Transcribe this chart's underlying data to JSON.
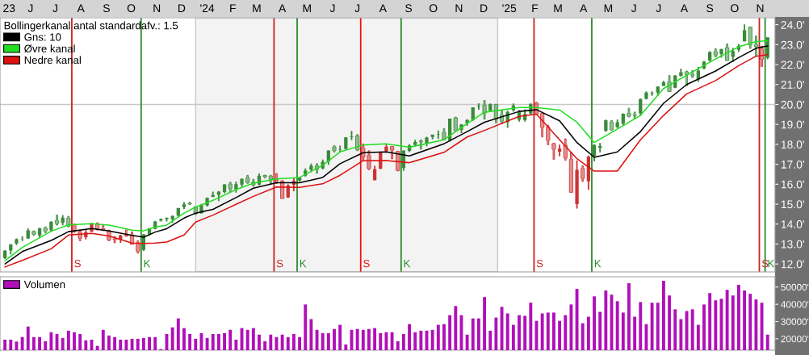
{
  "chart_data": [
    {
      "type": "candlestick",
      "x": [
        "2023-05-15",
        "2023-05-22",
        "2023-05-29",
        "2023-06-05",
        "2023-06-12",
        "2023-06-19",
        "2023-06-26",
        "2023-07-03",
        "2023-07-10",
        "2023-07-17",
        "2023-07-24",
        "2023-07-31",
        "2023-08-07",
        "2023-08-14",
        "2023-08-21",
        "2023-08-28",
        "2023-09-04",
        "2023-09-11",
        "2023-09-18",
        "2023-09-25",
        "2023-10-02",
        "2023-10-09",
        "2023-10-16",
        "2023-10-23",
        "2023-10-30",
        "2023-11-06",
        "2023-11-13",
        "2023-11-20",
        "2023-11-27",
        "2023-12-04",
        "2023-12-11",
        "2023-12-18",
        "2023-12-25",
        "2024-01-01",
        "2024-01-08",
        "2024-01-15",
        "2024-01-22",
        "2024-01-29",
        "2024-02-05",
        "2024-02-12",
        "2024-02-19",
        "2024-02-26",
        "2024-03-04",
        "2024-03-11",
        "2024-03-18",
        "2024-03-25",
        "2024-04-01",
        "2024-04-08",
        "2024-04-15",
        "2024-04-22",
        "2024-04-29",
        "2024-05-06",
        "2024-05-13",
        "2024-05-20",
        "2024-05-27",
        "2024-06-03",
        "2024-06-10",
        "2024-06-17",
        "2024-06-24",
        "2024-07-01",
        "2024-07-08",
        "2024-07-15",
        "2024-07-22",
        "2024-07-29",
        "2024-08-05",
        "2024-08-12",
        "2024-08-19",
        "2024-08-26",
        "2024-09-02",
        "2024-09-09",
        "2024-09-16",
        "2024-09-23",
        "2024-09-30",
        "2024-10-07",
        "2024-10-14",
        "2024-10-21",
        "2024-10-28",
        "2024-11-04",
        "2024-11-11",
        "2024-11-18",
        "2024-11-25",
        "2024-12-02",
        "2024-12-09",
        "2024-12-16",
        "2024-12-23",
        "2024-12-30",
        "2025-01-06",
        "2025-01-13",
        "2025-01-20",
        "2025-01-27",
        "2025-02-03",
        "2025-02-10",
        "2025-02-17",
        "2025-02-24",
        "2025-03-03",
        "2025-03-10",
        "2025-03-17",
        "2025-03-24",
        "2025-03-31",
        "2025-04-07",
        "2025-04-14",
        "2025-04-21",
        "2025-04-28",
        "2025-05-05",
        "2025-05-12",
        "2025-05-19",
        "2025-05-26",
        "2025-06-02",
        "2025-06-09",
        "2025-06-16",
        "2025-06-23",
        "2025-06-30",
        "2025-07-07",
        "2025-07-14",
        "2025-07-21",
        "2025-07-28",
        "2025-08-04",
        "2025-08-11",
        "2025-08-18",
        "2025-08-25",
        "2025-09-01",
        "2025-09-08",
        "2025-09-15",
        "2025-09-22",
        "2025-09-29",
        "2025-10-06",
        "2025-10-13",
        "2025-10-20",
        "2025-10-27",
        "2025-11-03",
        "2025-11-10",
        "2025-11-17",
        "2025-11-24"
      ],
      "ohlc": [
        [
          12.3,
          12.69,
          12.25,
          12.66
        ],
        [
          12.67,
          13.0,
          12.48,
          12.98
        ],
        [
          13.03,
          13.28,
          12.95,
          13.24
        ],
        [
          13.25,
          13.39,
          13.15,
          13.26
        ],
        [
          13.28,
          13.79,
          13.26,
          13.69
        ],
        [
          13.63,
          13.66,
          13.43,
          13.49
        ],
        [
          13.43,
          13.82,
          13.32,
          13.79
        ],
        [
          13.8,
          13.86,
          13.56,
          13.66
        ],
        [
          13.69,
          14.15,
          13.61,
          14.11
        ],
        [
          14.18,
          14.45,
          13.95,
          14.03
        ],
        [
          14.06,
          14.45,
          13.94,
          14.32
        ],
        [
          14.3,
          14.39,
          13.86,
          13.91
        ],
        [
          13.98,
          14.0,
          13.58,
          13.64
        ],
        [
          13.6,
          13.67,
          13.16,
          13.29
        ],
        [
          13.34,
          13.72,
          13.23,
          13.59
        ],
        [
          13.61,
          14.07,
          13.6,
          14.03
        ],
        [
          14.0,
          14.07,
          13.7,
          13.76
        ],
        [
          13.77,
          13.94,
          13.67,
          13.71
        ],
        [
          13.68,
          13.7,
          13.16,
          13.21
        ],
        [
          13.24,
          13.38,
          13.06,
          13.22
        ],
        [
          13.22,
          13.47,
          13.06,
          13.43
        ],
        [
          13.43,
          13.71,
          13.38,
          13.41
        ],
        [
          13.45,
          13.61,
          12.98,
          12.98
        ],
        [
          13.06,
          13.17,
          12.54,
          12.64
        ],
        [
          12.7,
          13.5,
          12.65,
          13.48
        ],
        [
          13.49,
          13.8,
          13.41,
          13.8
        ],
        [
          13.77,
          14.16,
          13.74,
          14.13
        ],
        [
          14.17,
          14.28,
          14.13,
          14.25
        ],
        [
          14.25,
          14.33,
          14.13,
          14.31
        ],
        [
          14.24,
          14.43,
          14.06,
          14.4
        ],
        [
          14.42,
          14.81,
          14.37,
          14.81
        ],
        [
          14.85,
          15.1,
          14.75,
          14.99
        ],
        [
          15.03,
          15.1,
          14.98,
          15.01
        ],
        [
          14.87,
          14.87,
          14.48,
          14.52
        ],
        [
          14.54,
          15.01,
          14.53,
          14.97
        ],
        [
          14.93,
          15.34,
          14.88,
          15.31
        ],
        [
          15.37,
          15.63,
          15.36,
          15.46
        ],
        [
          15.47,
          15.66,
          15.15,
          15.63
        ],
        [
          15.61,
          16.0,
          15.55,
          15.99
        ],
        [
          16.0,
          16.1,
          15.63,
          15.78
        ],
        [
          15.75,
          16.13,
          15.58,
          16.0
        ],
        [
          15.98,
          16.3,
          15.87,
          16.27
        ],
        [
          16.32,
          16.45,
          16.04,
          16.09
        ],
        [
          16.1,
          16.25,
          15.89,
          15.97
        ],
        [
          15.98,
          16.54,
          15.94,
          16.43
        ],
        [
          16.44,
          16.46,
          16.31,
          16.38
        ],
        [
          16.4,
          16.45,
          16.02,
          16.25
        ],
        [
          16.22,
          16.54,
          16.04,
          16.18
        ],
        [
          16.15,
          16.19,
          15.28,
          15.28
        ],
        [
          15.34,
          16.0,
          15.31,
          15.93
        ],
        [
          15.97,
          16.31,
          15.65,
          16.16
        ],
        [
          16.19,
          16.37,
          16.13,
          16.34
        ],
        [
          16.43,
          16.79,
          16.38,
          16.69
        ],
        [
          16.73,
          17.03,
          16.6,
          16.92
        ],
        [
          16.92,
          17.03,
          16.55,
          16.74
        ],
        [
          16.79,
          17.24,
          16.74,
          17.13
        ],
        [
          17.15,
          17.7,
          16.97,
          17.69
        ],
        [
          17.86,
          17.94,
          17.61,
          17.69
        ],
        [
          17.71,
          17.94,
          17.6,
          17.73
        ],
        [
          17.77,
          18.36,
          17.73,
          18.35
        ],
        [
          18.37,
          18.67,
          18.22,
          18.4
        ],
        [
          18.42,
          18.49,
          17.68,
          17.73
        ],
        [
          17.81,
          18.02,
          17.18,
          17.36
        ],
        [
          17.44,
          17.68,
          16.73,
          16.78
        ],
        [
          16.2,
          16.92,
          16.2,
          16.75
        ],
        [
          16.78,
          17.64,
          16.75,
          17.63
        ],
        [
          17.65,
          18.02,
          17.58,
          17.88
        ],
        [
          17.89,
          17.9,
          17.27,
          17.71
        ],
        [
          17.64,
          17.66,
          16.66,
          16.69
        ],
        [
          16.81,
          17.7,
          16.67,
          17.68
        ],
        [
          17.67,
          18.01,
          17.61,
          17.95
        ],
        [
          17.98,
          18.23,
          17.92,
          18.12
        ],
        [
          18.16,
          18.23,
          17.76,
          18.14
        ],
        [
          18.05,
          18.38,
          17.91,
          18.34
        ],
        [
          18.37,
          18.49,
          18.25,
          18.49
        ],
        [
          18.5,
          18.69,
          18.28,
          18.52
        ],
        [
          18.59,
          18.79,
          18.24,
          18.24
        ],
        [
          18.21,
          19.29,
          18.14,
          19.29
        ],
        [
          19.33,
          19.37,
          18.67,
          18.68
        ],
        [
          18.73,
          19.02,
          18.56,
          19.0
        ],
        [
          19.06,
          19.26,
          18.93,
          19.22
        ],
        [
          19.22,
          19.86,
          19.18,
          19.86
        ],
        [
          19.9,
          20.06,
          19.74,
          19.93
        ],
        [
          19.96,
          20.2,
          19.26,
          19.57
        ],
        [
          19.69,
          20.05,
          19.68,
          20.02
        ],
        [
          20.0,
          20.02,
          19.08,
          19.28
        ],
        [
          19.47,
          19.7,
          19.03,
          19.16
        ],
        [
          19.11,
          19.7,
          18.83,
          19.63
        ],
        [
          19.72,
          20.05,
          19.64,
          19.95
        ],
        [
          19.24,
          19.73,
          19.14,
          19.63
        ],
        [
          19.22,
          19.76,
          19.14,
          19.52
        ],
        [
          19.55,
          20.05,
          19.49,
          20.03
        ],
        [
          20.06,
          20.11,
          19.52,
          19.52
        ],
        [
          19.55,
          19.58,
          18.37,
          18.85
        ],
        [
          18.86,
          18.96,
          17.98,
          18.2
        ],
        [
          18.04,
          18.06,
          17.24,
          17.75
        ],
        [
          17.63,
          17.99,
          17.4,
          17.78
        ],
        [
          17.97,
          18.28,
          17.2,
          17.32
        ],
        [
          17.24,
          17.6,
          15.59,
          15.59
        ],
        [
          15.0,
          17.2,
          14.78,
          16.72
        ],
        [
          16.79,
          16.93,
          16.14,
          16.29
        ],
        [
          16.14,
          17.44,
          15.72,
          17.38
        ],
        [
          17.42,
          18.0,
          17.15,
          17.98
        ],
        [
          17.82,
          18.07,
          17.59,
          17.93
        ],
        [
          18.67,
          19.24,
          18.63,
          19.21
        ],
        [
          19.11,
          19.2,
          18.7,
          18.74
        ],
        [
          18.86,
          19.24,
          18.83,
          19.11
        ],
        [
          19.04,
          19.55,
          18.96,
          19.53
        ],
        [
          19.55,
          19.81,
          19.37,
          19.41
        ],
        [
          19.47,
          19.62,
          19.3,
          19.45
        ],
        [
          19.55,
          20.3,
          19.43,
          20.27
        ],
        [
          20.28,
          20.66,
          20.25,
          20.6
        ],
        [
          20.56,
          20.66,
          20.43,
          20.59
        ],
        [
          20.6,
          20.91,
          20.42,
          20.9
        ],
        [
          20.93,
          21.18,
          20.92,
          21.11
        ],
        [
          21.13,
          21.46,
          20.65,
          20.65
        ],
        [
          20.84,
          21.48,
          20.82,
          21.45
        ],
        [
          21.44,
          21.8,
          21.41,
          21.62
        ],
        [
          21.63,
          21.68,
          20.94,
          21.5
        ],
        [
          21.49,
          21.7,
          21.35,
          21.46
        ],
        [
          21.25,
          21.88,
          21.13,
          21.7
        ],
        [
          21.81,
          22.18,
          21.76,
          22.14
        ],
        [
          22.21,
          22.67,
          22.15,
          22.63
        ],
        [
          22.65,
          22.8,
          22.38,
          22.48
        ],
        [
          22.53,
          22.79,
          22.35,
          22.78
        ],
        [
          22.85,
          23.04,
          22.2,
          22.2
        ],
        [
          22.39,
          22.84,
          22.12,
          22.68
        ],
        [
          22.75,
          23.03,
          22.64,
          22.94
        ],
        [
          23.17,
          24.02,
          23.16,
          23.72
        ],
        [
          23.88,
          23.89,
          22.81,
          23.0
        ],
        [
          23.02,
          23.44,
          22.42,
          22.9
        ],
        [
          22.79,
          22.93,
          21.9,
          22.27
        ],
        [
          22.35,
          23.37,
          22.27,
          23.37
        ]
      ],
      "colors": [
        "#3a8a3a",
        "#3a8a3a",
        "#3a8a3a",
        "#3a8a3a",
        "#3a8a3a",
        "#3a8a3a",
        "#3a8a3a",
        "#3a8a3a",
        "#3a8a3a",
        "#3a8a3a",
        "#3a8a3a",
        "#3a8a3a",
        "#cc3333",
        "#cc3333",
        "#cc3333",
        "#cc3333",
        "#cc3333",
        "#cc3333",
        "#cc3333",
        "#cc3333",
        "#cc3333",
        "#cc3333",
        "#cc3333",
        "#cc3333",
        "#3a8a3a",
        "#3a8a3a",
        "#3a8a3a",
        "#3a8a3a",
        "#3a8a3a",
        "#3a8a3a",
        "#3a8a3a",
        "#3a8a3a",
        "#3a8a3a",
        "#3a8a3a",
        "#3a8a3a",
        "#3a8a3a",
        "#3a8a3a",
        "#3a8a3a",
        "#3a8a3a",
        "#3a8a3a",
        "#3a8a3a",
        "#3a8a3a",
        "#3a8a3a",
        "#3a8a3a",
        "#3a8a3a",
        "#3a8a3a",
        "#3a8a3a",
        "#cc3333",
        "#cc3333",
        "#cc3333",
        "#cc3333",
        "#3a8a3a",
        "#3a8a3a",
        "#3a8a3a",
        "#3a8a3a",
        "#3a8a3a",
        "#3a8a3a",
        "#3a8a3a",
        "#3a8a3a",
        "#3a8a3a",
        "#3a8a3a",
        "#3a8a3a",
        "#cc3333",
        "#cc3333",
        "#cc3333",
        "#cc3333",
        "#cc3333",
        "#cc3333",
        "#cc3333",
        "#3a8a3a",
        "#3a8a3a",
        "#3a8a3a",
        "#3a8a3a",
        "#3a8a3a",
        "#3a8a3a",
        "#3a8a3a",
        "#3a8a3a",
        "#3a8a3a",
        "#3a8a3a",
        "#3a8a3a",
        "#3a8a3a",
        "#3a8a3a",
        "#3a8a3a",
        "#3a8a3a",
        "#3a8a3a",
        "#3a8a3a",
        "#3a8a3a",
        "#3a8a3a",
        "#3a8a3a",
        "#3a8a3a",
        "#3a8a3a",
        "#3a8a3a",
        "#cc3333",
        "#cc3333",
        "#cc3333",
        "#cc3333",
        "#cc3333",
        "#cc3333",
        "#cc3333",
        "#cc3333",
        "#cc3333",
        "#cc3333",
        "#3a8a3a",
        "#3a8a3a",
        "#3a8a3a",
        "#3a8a3a",
        "#3a8a3a",
        "#3a8a3a",
        "#3a8a3a",
        "#3a8a3a",
        "#3a8a3a",
        "#3a8a3a",
        "#3a8a3a",
        "#3a8a3a",
        "#3a8a3a",
        "#3a8a3a",
        "#3a8a3a",
        "#3a8a3a",
        "#3a8a3a",
        "#3a8a3a",
        "#3a8a3a",
        "#3a8a3a",
        "#3a8a3a",
        "#3a8a3a",
        "#3a8a3a",
        "#3a8a3a",
        "#3a8a3a",
        "#3a8a3a",
        "#3a8a3a",
        "#3a8a3a",
        "#3a8a3a",
        "#cc3333",
        "#3a8a3a"
      ],
      "series": [
        {
          "type": "line",
          "name": "Gns: 10",
          "color": "#000000",
          "x": [
            "2023-05-15",
            "2023-06-05",
            "2023-07-10",
            "2023-07-31",
            "2023-08-28",
            "2023-09-18",
            "2023-10-16",
            "2023-10-30",
            "2023-11-13",
            "2023-11-27",
            "2023-12-18",
            "2024-01-01",
            "2024-01-22",
            "2024-02-19",
            "2024-03-11",
            "2024-04-08",
            "2024-05-06",
            "2024-06-03",
            "2024-06-24",
            "2024-07-22",
            "2024-08-19",
            "2024-09-16",
            "2024-10-28",
            "2024-11-25",
            "2024-12-16",
            "2025-01-27",
            "2025-02-17",
            "2025-03-17",
            "2025-04-07",
            "2025-04-28",
            "2025-05-26",
            "2025-06-23",
            "2025-07-21",
            "2025-08-18",
            "2025-09-22",
            "2025-10-20",
            "2025-11-10",
            "2025-11-24"
          ],
          "values": [
            12.0,
            12.62,
            13.18,
            13.62,
            13.78,
            13.66,
            13.43,
            13.34,
            13.6,
            13.77,
            14.3,
            14.55,
            14.74,
            15.33,
            15.8,
            16.07,
            16.07,
            16.34,
            17.03,
            17.58,
            17.62,
            17.42,
            18.03,
            18.64,
            19.11,
            19.65,
            19.74,
            19.18,
            18.09,
            17.35,
            17.62,
            18.64,
            20.06,
            21.0,
            21.68,
            22.35,
            22.82,
            22.93
          ]
        },
        {
          "type": "line",
          "name": "Øvre kanal",
          "color": "#22dd22",
          "x": [
            "2023-05-15",
            "2023-06-05",
            "2023-07-10",
            "2023-07-31",
            "2023-08-28",
            "2023-09-18",
            "2023-10-16",
            "2023-10-30",
            "2023-11-13",
            "2023-11-27",
            "2023-12-18",
            "2024-01-01",
            "2024-01-22",
            "2024-02-19",
            "2024-03-11",
            "2024-04-08",
            "2024-05-06",
            "2024-06-03",
            "2024-06-24",
            "2024-07-22",
            "2024-08-19",
            "2024-09-16",
            "2024-10-28",
            "2024-11-25",
            "2024-12-16",
            "2025-01-27",
            "2025-02-17",
            "2025-03-17",
            "2025-04-07",
            "2025-04-28",
            "2025-05-26",
            "2025-06-23",
            "2025-07-21",
            "2025-08-18",
            "2025-09-22",
            "2025-10-20",
            "2025-11-10",
            "2025-11-24"
          ],
          "values": [
            12.16,
            12.83,
            13.64,
            13.96,
            14.02,
            13.95,
            13.7,
            13.66,
            13.85,
            13.95,
            14.55,
            14.85,
            15.19,
            15.73,
            16.05,
            16.27,
            16.34,
            16.95,
            17.62,
            17.97,
            18.03,
            17.85,
            18.23,
            19.04,
            19.61,
            19.85,
            19.85,
            19.72,
            19.11,
            18.09,
            18.77,
            19.45,
            20.8,
            21.47,
            22.28,
            22.89,
            23.16,
            23.2
          ]
        },
        {
          "type": "line",
          "name": "Nedre kanal",
          "color": "#dd1111",
          "x": [
            "2023-05-15",
            "2023-06-05",
            "2023-07-10",
            "2023-07-31",
            "2023-08-28",
            "2023-09-18",
            "2023-10-16",
            "2023-10-30",
            "2023-11-13",
            "2023-11-27",
            "2023-12-18",
            "2024-01-01",
            "2024-01-22",
            "2024-02-19",
            "2024-03-11",
            "2024-04-08",
            "2024-05-06",
            "2024-06-03",
            "2024-06-24",
            "2024-07-22",
            "2024-08-19",
            "2024-09-16",
            "2024-10-28",
            "2024-11-25",
            "2024-12-16",
            "2025-01-27",
            "2025-02-17",
            "2025-03-17",
            "2025-04-07",
            "2025-04-28",
            "2025-05-26",
            "2025-06-23",
            "2025-07-21",
            "2025-08-18",
            "2025-09-22",
            "2025-10-20",
            "2025-11-10",
            "2025-11-24"
          ],
          "values": [
            11.85,
            12.18,
            12.76,
            13.45,
            13.53,
            13.4,
            13.05,
            13.03,
            13.05,
            13.1,
            13.45,
            14.1,
            14.45,
            14.99,
            15.39,
            15.86,
            15.84,
            16.02,
            16.45,
            17.18,
            17.19,
            17.08,
            17.6,
            18.37,
            18.7,
            19.4,
            19.51,
            18.23,
            17.28,
            16.66,
            16.66,
            18.23,
            19.45,
            20.53,
            21.2,
            21.95,
            22.42,
            22.5
          ]
        }
      ],
      "legend": "top left",
      "legend_title": "Bollingerkanal antal standardafv.: 1.5",
      "xlim": [
        "2023-05-09",
        "2025-12-03"
      ],
      "xticks": [
        {
          "value": "2023-05-20",
          "label": "23"
        },
        {
          "value": "2023-06-15",
          "label": "J"
        },
        {
          "value": "2023-07-15",
          "label": "J"
        },
        {
          "value": "2023-08-15",
          "label": "A"
        },
        {
          "value": "2023-09-15",
          "label": "S"
        },
        {
          "value": "2023-10-15",
          "label": "O"
        },
        {
          "value": "2023-11-15",
          "label": "N"
        },
        {
          "value": "2023-12-15",
          "label": "D"
        },
        {
          "value": "2024-01-15",
          "label": "'24"
        },
        {
          "value": "2024-02-15",
          "label": "F"
        },
        {
          "value": "2024-03-15",
          "label": "M"
        },
        {
          "value": "2024-04-15",
          "label": "A"
        },
        {
          "value": "2024-05-15",
          "label": "M"
        },
        {
          "value": "2024-06-15",
          "label": "J"
        },
        {
          "value": "2024-07-15",
          "label": "J"
        },
        {
          "value": "2024-08-15",
          "label": "A"
        },
        {
          "value": "2024-09-15",
          "label": "S"
        },
        {
          "value": "2024-10-15",
          "label": "O"
        },
        {
          "value": "2024-11-15",
          "label": "N"
        },
        {
          "value": "2024-12-15",
          "label": "D"
        },
        {
          "value": "2025-01-15",
          "label": "'25"
        },
        {
          "value": "2025-02-15",
          "label": "F"
        },
        {
          "value": "2025-03-15",
          "label": "M"
        },
        {
          "value": "2025-04-15",
          "label": "A"
        },
        {
          "value": "2025-05-15",
          "label": "M"
        },
        {
          "value": "2025-06-15",
          "label": "J"
        },
        {
          "value": "2025-07-15",
          "label": "J"
        },
        {
          "value": "2025-08-15",
          "label": "A"
        },
        {
          "value": "2025-09-15",
          "label": "S"
        },
        {
          "value": "2025-10-15",
          "label": "O"
        },
        {
          "value": "2025-11-15",
          "label": "N"
        }
      ],
      "ylim": [
        11.6,
        24.35
      ],
      "yticks": [
        {
          "value": 12,
          "label": "12.0'"
        },
        {
          "value": 13,
          "label": "13.0'"
        },
        {
          "value": 14,
          "label": "14.0'"
        },
        {
          "value": 15,
          "label": "15.0'"
        },
        {
          "value": 16,
          "label": "16.0'"
        },
        {
          "value": 17,
          "label": "17.0'"
        },
        {
          "value": 18,
          "label": "18.0'"
        },
        {
          "value": 19,
          "label": "19.0'"
        },
        {
          "value": 20,
          "label": "20.0'"
        },
        {
          "value": 21,
          "label": "21.0'"
        },
        {
          "value": 22,
          "label": "22.0'"
        },
        {
          "value": 23,
          "label": "23.0'"
        },
        {
          "value": 24,
          "label": "24.0'"
        }
      ],
      "bands": [
        {
          "axis": "x",
          "from": "2024-01-01",
          "to": "2025-01-01",
          "color": "#f3f3f3"
        }
      ],
      "ref_lines": [
        {
          "axis": "y",
          "value": 20,
          "color": "#c8c8c8"
        },
        {
          "axis": "x",
          "value": "2023-08-04",
          "label": "S",
          "color": "#cc2222"
        },
        {
          "axis": "x",
          "value": "2023-10-27",
          "label": "K",
          "color": "#2e8b2e"
        },
        {
          "axis": "x",
          "value": "2024-04-05",
          "label": "S",
          "color": "#cc2222"
        },
        {
          "axis": "x",
          "value": "2024-05-03",
          "label": "K",
          "color": "#2e8b2e"
        },
        {
          "axis": "x",
          "value": "2024-07-19",
          "label": "S",
          "color": "#ee1111"
        },
        {
          "axis": "x",
          "value": "2024-09-06",
          "label": "K",
          "color": "#2e8b2e"
        },
        {
          "axis": "x",
          "value": "2025-02-14",
          "label": "S",
          "color": "#cc2222"
        },
        {
          "axis": "x",
          "value": "2025-04-25",
          "label": "K",
          "color": "#2e8b2e"
        },
        {
          "axis": "x",
          "value": "2025-11-14",
          "label": "S",
          "color": "#cc2222"
        },
        {
          "axis": "x",
          "value": "2025-11-21",
          "label": "K",
          "color": "#2e8b2e"
        }
      ]
    },
    {
      "type": "bar",
      "x": [
        "2023-05-15",
        "2023-05-22",
        "2023-05-29",
        "2023-06-05",
        "2023-06-12",
        "2023-06-19",
        "2023-06-26",
        "2023-07-03",
        "2023-07-10",
        "2023-07-17",
        "2023-07-24",
        "2023-07-31",
        "2023-08-07",
        "2023-08-14",
        "2023-08-21",
        "2023-08-28",
        "2023-09-04",
        "2023-09-11",
        "2023-09-18",
        "2023-09-25",
        "2023-10-02",
        "2023-10-09",
        "2023-10-16",
        "2023-10-23",
        "2023-10-30",
        "2023-11-06",
        "2023-11-13",
        "2023-11-20",
        "2023-11-27",
        "2023-12-04",
        "2023-12-11",
        "2023-12-18",
        "2023-12-25",
        "2024-01-01",
        "2024-01-08",
        "2024-01-15",
        "2024-01-22",
        "2024-01-29",
        "2024-02-05",
        "2024-02-12",
        "2024-02-19",
        "2024-02-26",
        "2024-03-04",
        "2024-03-11",
        "2024-03-18",
        "2024-03-25",
        "2024-04-01",
        "2024-04-08",
        "2024-04-15",
        "2024-04-22",
        "2024-04-29",
        "2024-05-06",
        "2024-05-13",
        "2024-05-20",
        "2024-05-27",
        "2024-06-03",
        "2024-06-10",
        "2024-06-17",
        "2024-06-24",
        "2024-07-01",
        "2024-07-08",
        "2024-07-15",
        "2024-07-22",
        "2024-07-29",
        "2024-08-05",
        "2024-08-12",
        "2024-08-19",
        "2024-08-26",
        "2024-09-02",
        "2024-09-09",
        "2024-09-16",
        "2024-09-23",
        "2024-09-30",
        "2024-10-07",
        "2024-10-14",
        "2024-10-21",
        "2024-10-28",
        "2024-11-04",
        "2024-11-11",
        "2024-11-18",
        "2024-11-25",
        "2024-12-02",
        "2024-12-09",
        "2024-12-16",
        "2024-12-23",
        "2024-12-30",
        "2025-01-06",
        "2025-01-13",
        "2025-01-20",
        "2025-01-27",
        "2025-02-03",
        "2025-02-10",
        "2025-02-17",
        "2025-02-24",
        "2025-03-03",
        "2025-03-10",
        "2025-03-17",
        "2025-03-24",
        "2025-03-31",
        "2025-04-07",
        "2025-04-14",
        "2025-04-21",
        "2025-04-28",
        "2025-05-05",
        "2025-05-12",
        "2025-05-19",
        "2025-05-26",
        "2025-06-02",
        "2025-06-09",
        "2025-06-16",
        "2025-06-23",
        "2025-06-30",
        "2025-07-07",
        "2025-07-14",
        "2025-07-21",
        "2025-07-28",
        "2025-08-04",
        "2025-08-11",
        "2025-08-18",
        "2025-08-25",
        "2025-09-01",
        "2025-09-08",
        "2025-09-15",
        "2025-09-22",
        "2025-09-29",
        "2025-10-06",
        "2025-10-13",
        "2025-10-20",
        "2025-10-27",
        "2025-11-03",
        "2025-11-10",
        "2025-11-17",
        "2025-11-24"
      ],
      "series": [
        {
          "name": "Volumen",
          "color": "#b010b8",
          "values": [
            19500,
            19500,
            18400,
            21000,
            27100,
            21000,
            21000,
            18600,
            23800,
            22800,
            20500,
            24700,
            23800,
            22800,
            19100,
            19500,
            15900,
            25200,
            21900,
            21000,
            19500,
            19500,
            20000,
            20000,
            20500,
            21000,
            21000,
            14000,
            22800,
            26600,
            31800,
            26200,
            22800,
            20000,
            23300,
            20500,
            22800,
            22800,
            23300,
            25200,
            19500,
            26200,
            25200,
            26200,
            22400,
            18600,
            22400,
            21000,
            22400,
            21000,
            22800,
            21000,
            39900,
            31400,
            25200,
            23300,
            23300,
            25700,
            28100,
            16700,
            25200,
            25700,
            25200,
            25700,
            26200,
            23300,
            23800,
            23800,
            18600,
            22800,
            28500,
            23800,
            24700,
            24700,
            25200,
            28100,
            28500,
            33700,
            39000,
            33700,
            22400,
            31800,
            31800,
            44200,
            24700,
            32300,
            38500,
            34700,
            28100,
            33700,
            33300,
            40900,
            30400,
            34700,
            35200,
            35200,
            30400,
            33700,
            39900,
            48900,
            29000,
            32800,
            44600,
            35600,
            48000,
            45600,
            41800,
            35200,
            52200,
            32800,
            41300,
            28500,
            40900,
            40900,
            53600,
            45100,
            37100,
            31400,
            36100,
            37100,
            28100,
            39900,
            46500,
            42300,
            43200,
            48400,
            45100,
            51300,
            48000,
            46100,
            42800,
            40900,
            22400
          ]
        }
      ],
      "legend": "top left",
      "xlim": [
        "2023-05-09",
        "2025-12-03"
      ],
      "ylim": [
        13400,
        56000
      ],
      "yticks": [
        {
          "value": 20000,
          "label": "20000\""
        },
        {
          "value": 30000,
          "label": "30000\""
        },
        {
          "value": 40000,
          "label": "40000\""
        },
        {
          "value": 50000,
          "label": "50000\""
        }
      ]
    }
  ]
}
